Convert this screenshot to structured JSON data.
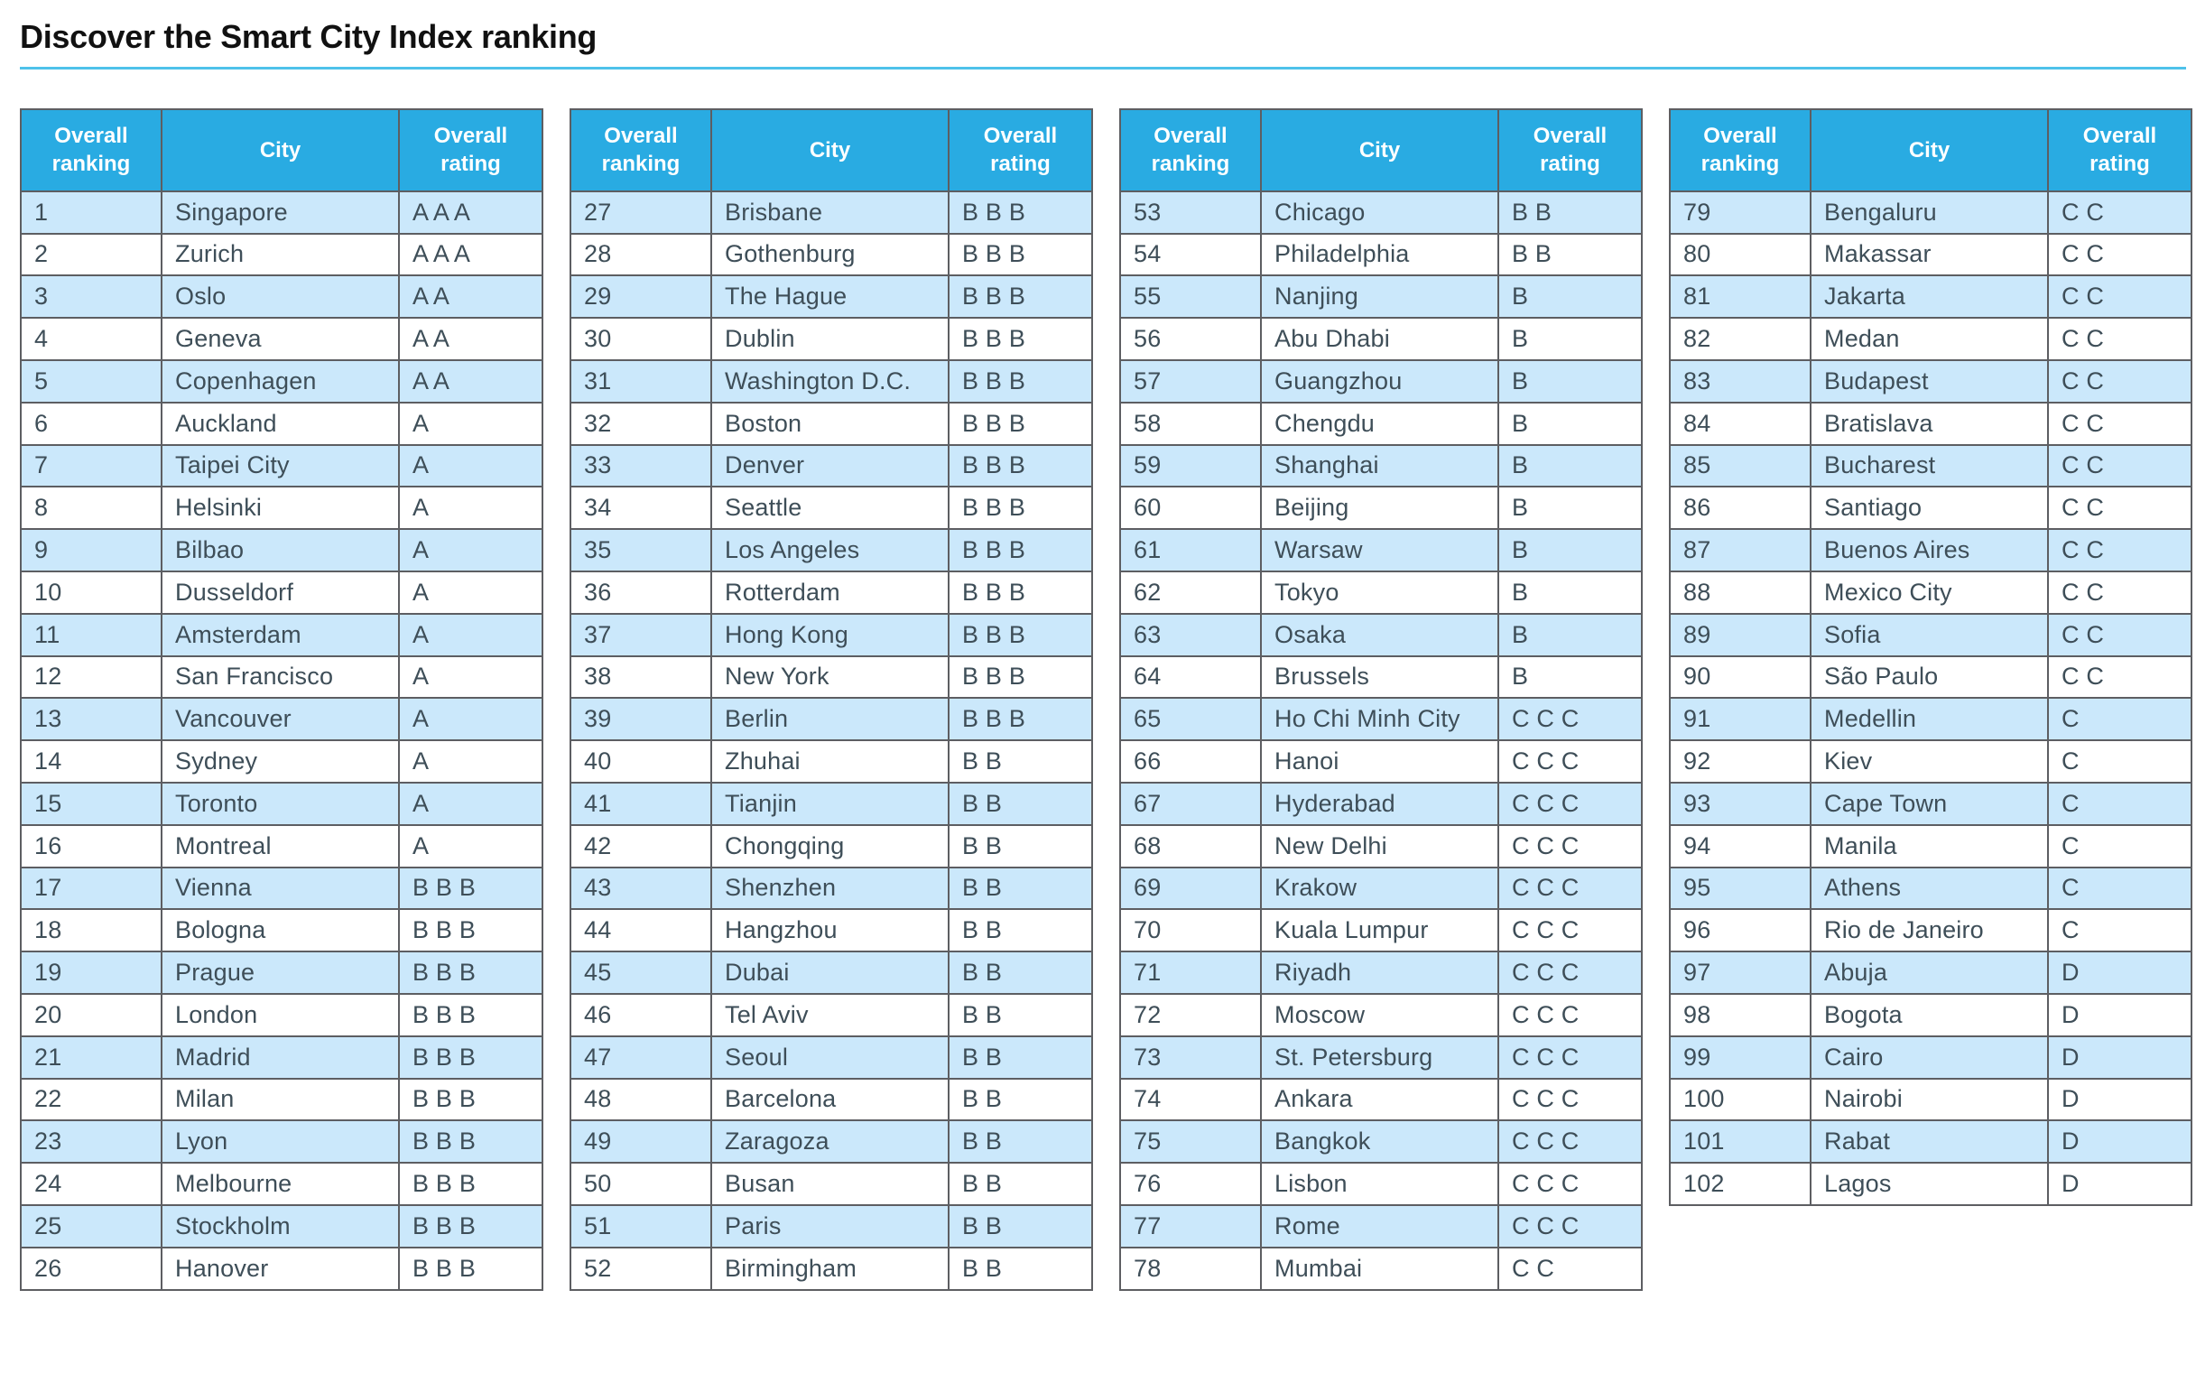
{
  "page": {
    "title": "Discover the Smart City Index ranking"
  },
  "columns": [
    "Overall ranking",
    "City",
    "Overall rating"
  ],
  "colors": {
    "header_bg": "#29abe2",
    "row_alt": "#cbe8fb",
    "border": "#5d5e62",
    "underline": "#4fc2ea",
    "text": "#3e4e58"
  },
  "tables": [
    {
      "rows": [
        [
          "1",
          "Singapore",
          "A A A"
        ],
        [
          "2",
          "Zurich",
          "A A A"
        ],
        [
          "3",
          "Oslo",
          "A A"
        ],
        [
          "4",
          "Geneva",
          "A A"
        ],
        [
          "5",
          "Copenhagen",
          "A A"
        ],
        [
          "6",
          "Auckland",
          "A"
        ],
        [
          "7",
          "Taipei City",
          "A"
        ],
        [
          "8",
          "Helsinki",
          "A"
        ],
        [
          "9",
          "Bilbao",
          "A"
        ],
        [
          "10",
          "Dusseldorf",
          "A"
        ],
        [
          "11",
          "Amsterdam",
          "A"
        ],
        [
          "12",
          "San Francisco",
          "A"
        ],
        [
          "13",
          "Vancouver",
          "A"
        ],
        [
          "14",
          "Sydney",
          "A"
        ],
        [
          "15",
          "Toronto",
          "A"
        ],
        [
          "16",
          "Montreal",
          "A"
        ],
        [
          "17",
          "Vienna",
          "B B B"
        ],
        [
          "18",
          "Bologna",
          "B B B"
        ],
        [
          "19",
          "Prague",
          "B B B"
        ],
        [
          "20",
          "London",
          "B B B"
        ],
        [
          "21",
          "Madrid",
          "B B B"
        ],
        [
          "22",
          "Milan",
          "B B B"
        ],
        [
          "23",
          "Lyon",
          "B B B"
        ],
        [
          "24",
          "Melbourne",
          "B B B"
        ],
        [
          "25",
          "Stockholm",
          "B B B"
        ],
        [
          "26",
          "Hanover",
          "B B B"
        ]
      ]
    },
    {
      "rows": [
        [
          "27",
          "Brisbane",
          "B B B"
        ],
        [
          "28",
          "Gothenburg",
          "B B B"
        ],
        [
          "29",
          "The Hague",
          "B B B"
        ],
        [
          "30",
          "Dublin",
          "B B B"
        ],
        [
          "31",
          "Washington D.C.",
          "B B B"
        ],
        [
          "32",
          "Boston",
          "B B B"
        ],
        [
          "33",
          "Denver",
          "B B B"
        ],
        [
          "34",
          "Seattle",
          "B B B"
        ],
        [
          "35",
          "Los Angeles",
          "B B B"
        ],
        [
          "36",
          "Rotterdam",
          "B B B"
        ],
        [
          "37",
          "Hong Kong",
          "B B B"
        ],
        [
          "38",
          "New York",
          "B B B"
        ],
        [
          "39",
          "Berlin",
          "B B B"
        ],
        [
          "40",
          "Zhuhai",
          "B B"
        ],
        [
          "41",
          "Tianjin",
          "B B"
        ],
        [
          "42",
          "Chongqing",
          "B B"
        ],
        [
          "43",
          "Shenzhen",
          "B B"
        ],
        [
          "44",
          "Hangzhou",
          "B B"
        ],
        [
          "45",
          "Dubai",
          "B B"
        ],
        [
          "46",
          "Tel Aviv",
          "B B"
        ],
        [
          "47",
          "Seoul",
          "B B"
        ],
        [
          "48",
          "Barcelona",
          "B B"
        ],
        [
          "49",
          "Zaragoza",
          "B B"
        ],
        [
          "50",
          "Busan",
          "B B"
        ],
        [
          "51",
          "Paris",
          "B B"
        ],
        [
          "52",
          "Birmingham",
          "B B"
        ]
      ]
    },
    {
      "rows": [
        [
          "53",
          "Chicago",
          "B B"
        ],
        [
          "54",
          "Philadelphia",
          "B B"
        ],
        [
          "55",
          "Nanjing",
          "B"
        ],
        [
          "56",
          "Abu Dhabi",
          "B"
        ],
        [
          "57",
          "Guangzhou",
          "B"
        ],
        [
          "58",
          "Chengdu",
          "B"
        ],
        [
          "59",
          "Shanghai",
          "B"
        ],
        [
          "60",
          "Beijing",
          "B"
        ],
        [
          "61",
          "Warsaw",
          "B"
        ],
        [
          "62",
          "Tokyo",
          "B"
        ],
        [
          "63",
          "Osaka",
          "B"
        ],
        [
          "64",
          "Brussels",
          "B"
        ],
        [
          "65",
          "Ho Chi Minh City",
          "C C C"
        ],
        [
          "66",
          "Hanoi",
          "C C C"
        ],
        [
          "67",
          "Hyderabad",
          "C C C"
        ],
        [
          "68",
          "New Delhi",
          "C C C"
        ],
        [
          "69",
          "Krakow",
          "C C C"
        ],
        [
          "70",
          "Kuala Lumpur",
          "C C C"
        ],
        [
          "71",
          "Riyadh",
          "C C C"
        ],
        [
          "72",
          "Moscow",
          "C C C"
        ],
        [
          "73",
          "St. Petersburg",
          "C C C"
        ],
        [
          "74",
          "Ankara",
          "C C C"
        ],
        [
          "75",
          "Bangkok",
          "C C C"
        ],
        [
          "76",
          "Lisbon",
          "C C C"
        ],
        [
          "77",
          "Rome",
          "C C C"
        ],
        [
          "78",
          "Mumbai",
          "C C"
        ]
      ]
    },
    {
      "rows": [
        [
          "79",
          "Bengaluru",
          "C C"
        ],
        [
          "80",
          "Makassar",
          "C C"
        ],
        [
          "81",
          "Jakarta",
          "C C"
        ],
        [
          "82",
          "Medan",
          "C C"
        ],
        [
          "83",
          "Budapest",
          "C C"
        ],
        [
          "84",
          "Bratislava",
          "C C"
        ],
        [
          "85",
          "Bucharest",
          "C C"
        ],
        [
          "86",
          "Santiago",
          "C C"
        ],
        [
          "87",
          "Buenos Aires",
          "C C"
        ],
        [
          "88",
          "Mexico City",
          "C C"
        ],
        [
          "89",
          "Sofia",
          "C C"
        ],
        [
          "90",
          "São Paulo",
          "C C"
        ],
        [
          "91",
          "Medellin",
          "C"
        ],
        [
          "92",
          "Kiev",
          "C"
        ],
        [
          "93",
          "Cape Town",
          "C"
        ],
        [
          "94",
          "Manila",
          "C"
        ],
        [
          "95",
          "Athens",
          "C"
        ],
        [
          "96",
          "Rio de Janeiro",
          "C"
        ],
        [
          "97",
          "Abuja",
          "D"
        ],
        [
          "98",
          "Bogota",
          "D"
        ],
        [
          "99",
          "Cairo",
          "D"
        ],
        [
          "100",
          "Nairobi",
          "D"
        ],
        [
          "101",
          "Rabat",
          "D"
        ],
        [
          "102",
          "Lagos",
          "D"
        ]
      ]
    }
  ]
}
